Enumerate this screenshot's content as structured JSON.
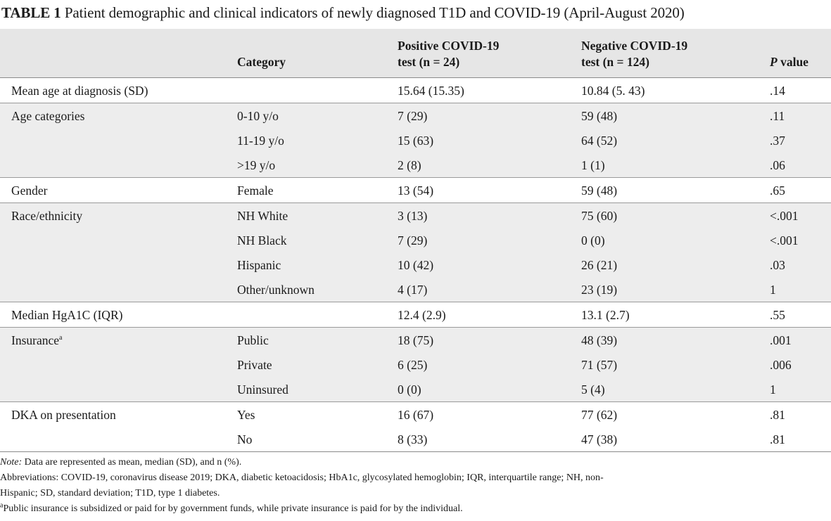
{
  "title": {
    "label": "TABLE 1",
    "text": "Patient demographic and clinical indicators of newly diagnosed T1D and COVID-19 (April-August 2020)"
  },
  "header": {
    "col0": "",
    "category": "Category",
    "positive_line1": "Positive COVID-19",
    "positive_line2": "test (n = 24)",
    "negative_line1": "Negative COVID-19",
    "negative_line2": "test (n = 124)",
    "p_italic": "P",
    "p_rest": " value"
  },
  "rows": [
    {
      "label": "Mean age at diagnosis (SD)",
      "sup": "",
      "category": "",
      "positive": "15.64 (15.35)",
      "negative": "10.84 (5. 43)",
      "p": ".14"
    },
    {
      "label": "Age categories",
      "sup": "",
      "category": "0-10 y/o",
      "positive": "7 (29)",
      "negative": "59 (48)",
      "p": ".11"
    },
    {
      "label": "",
      "sup": "",
      "category": "11-19 y/o",
      "positive": "15 (63)",
      "negative": "64 (52)",
      "p": ".37"
    },
    {
      "label": "",
      "sup": "",
      "category": ">19 y/o",
      "positive": "2 (8)",
      "negative": "1 (1)",
      "p": ".06"
    },
    {
      "label": "Gender",
      "sup": "",
      "category": "Female",
      "positive": "13 (54)",
      "negative": "59 (48)",
      "p": ".65"
    },
    {
      "label": "Race/ethnicity",
      "sup": "",
      "category": "NH White",
      "positive": "3 (13)",
      "negative": "75 (60)",
      "p": "<.001"
    },
    {
      "label": "",
      "sup": "",
      "category": "NH Black",
      "positive": "7 (29)",
      "negative": "0 (0)",
      "p": "<.001"
    },
    {
      "label": "",
      "sup": "",
      "category": "Hispanic",
      "positive": "10 (42)",
      "negative": "26 (21)",
      "p": ".03"
    },
    {
      "label": "",
      "sup": "",
      "category": "Other/unknown",
      "positive": "4 (17)",
      "negative": "23 (19)",
      "p": "1"
    },
    {
      "label": "Median HgA1C (IQR)",
      "sup": "",
      "category": "",
      "positive": "12.4 (2.9)",
      "negative": "13.1 (2.7)",
      "p": ".55"
    },
    {
      "label": "Insurance",
      "sup": "a",
      "category": "Public",
      "positive": "18 (75)",
      "negative": "48 (39)",
      "p": ".001"
    },
    {
      "label": "",
      "sup": "",
      "category": "Private",
      "positive": "6 (25)",
      "negative": "71 (57)",
      "p": ".006"
    },
    {
      "label": "",
      "sup": "",
      "category": "Uninsured",
      "positive": "0 (0)",
      "negative": "5 (4)",
      "p": "1"
    },
    {
      "label": "DKA on presentation",
      "sup": "",
      "category": "Yes",
      "positive": "16 (67)",
      "negative": "77 (62)",
      "p": ".81"
    },
    {
      "label": "",
      "sup": "",
      "category": "No",
      "positive": "8 (33)",
      "negative": "47 (38)",
      "p": ".81"
    }
  ],
  "notes": {
    "note_label": "Note:",
    "note_text": " Data are represented as mean, median (SD), and n (%).",
    "abbreviations_line1": "Abbreviations: COVID-19, coronavirus disease 2019; DKA, diabetic ketoacidosis; HbA1c, glycosylated hemoglobin; IQR, interquartile range; NH, non-",
    "abbreviations_line2": "Hispanic; SD, standard deviation; T1D, type 1 diabetes.",
    "footnote_mark": "a",
    "footnote_text": "Public insurance is subsidized or paid for by government funds, while private insurance is paid for by the individual."
  }
}
